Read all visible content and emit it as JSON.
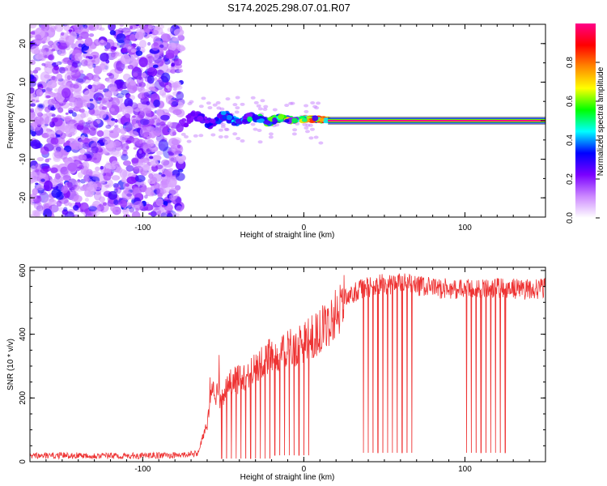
{
  "figure_title": "S174.2025.298.07.01.R07",
  "chart_data": [
    {
      "type": "heatmap",
      "title": "S174.2025.298.07.01.R07",
      "xlabel": "Height of straight line (km)",
      "ylabel": "Frequency (Hz)",
      "xlim": [
        -170,
        150
      ],
      "ylim": [
        -25,
        25
      ],
      "xticks": [
        -100,
        0,
        100
      ],
      "yticks": [
        -20,
        -10,
        0,
        10,
        20
      ],
      "xtick_labels": [
        "-100",
        "0",
        "100"
      ],
      "ytick_labels": [
        "-20",
        "-10",
        "0",
        "10",
        "20"
      ],
      "colorbar": {
        "label": "Normalized spectral amplitude",
        "range": [
          0,
          1
        ],
        "ticks": [
          0.0,
          0.2,
          0.4,
          0.6,
          0.8
        ],
        "tick_labels": [
          "0.0",
          "0.2",
          "0.4",
          "0.6",
          "0.8"
        ],
        "colors": [
          "#ffffff",
          "#cc88ff",
          "#7a00ff",
          "#0000ff",
          "#00ffff",
          "#00ff00",
          "#ffff00",
          "#ff8800",
          "#ff0000",
          "#ff0088"
        ]
      },
      "regions": [
        {
          "name": "noise",
          "x": [
            -170,
            -76
          ],
          "frequency_range": [
            -25,
            25
          ],
          "amplitude": [
            0.0,
            0.25
          ]
        },
        {
          "name": "signal_onset",
          "x": [
            -76,
            15
          ],
          "frequency_center": [
            2.0,
            0.0
          ],
          "amplitude": [
            0.2,
            0.95
          ]
        },
        {
          "name": "carrier",
          "x": [
            15,
            150
          ],
          "frequency": 0.0,
          "amplitude": 1.0
        }
      ]
    },
    {
      "type": "line",
      "xlabel": "Height of straight line (km)",
      "ylabel": "SNR (10 * v/v)",
      "xlim": [
        -170,
        150
      ],
      "ylim": [
        0,
        610
      ],
      "xticks": [
        -100,
        0,
        100
      ],
      "yticks": [
        0,
        200,
        400,
        600
      ],
      "xtick_labels": [
        "-100",
        "0",
        "100"
      ],
      "ytick_labels": [
        "0",
        "200",
        "400",
        "600"
      ],
      "color": "#ee3333",
      "series": [
        {
          "name": "SNR",
          "x": [
            -170,
            -140,
            -110,
            -80,
            -66,
            -60,
            -57,
            -52,
            -45,
            -35,
            -25,
            -15,
            -5,
            5,
            15,
            25,
            35,
            45,
            60,
            80,
            100,
            120,
            140,
            150
          ],
          "y": [
            18,
            20,
            18,
            20,
            25,
            120,
            230,
            200,
            250,
            270,
            320,
            340,
            360,
            390,
            430,
            510,
            540,
            555,
            560,
            545,
            540,
            545,
            540,
            545
          ]
        }
      ],
      "dropouts_x": [
        -51,
        -48,
        -45,
        -42,
        -39,
        -36,
        -33,
        -30,
        -27,
        -24,
        -21,
        -18,
        -15,
        -12,
        -9,
        -6,
        -3,
        0,
        3,
        37,
        40,
        43,
        46,
        49,
        52,
        55,
        58,
        61,
        64,
        67,
        101,
        104,
        107,
        110,
        113,
        116,
        119,
        122,
        125
      ]
    }
  ]
}
